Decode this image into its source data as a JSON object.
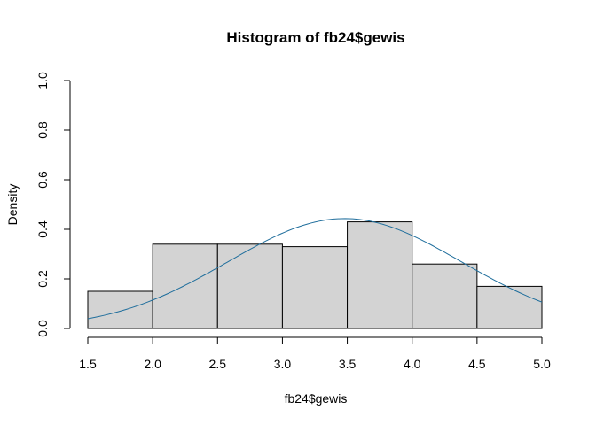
{
  "chart_data": {
    "type": "bar",
    "title": "Histogram of fb24$gewis",
    "xlabel": "fb24$gewis",
    "ylabel": "Density",
    "xlim": [
      1.5,
      5.0
    ],
    "ylim": [
      0,
      1.0
    ],
    "x_ticks": [
      "1.5",
      "2.0",
      "2.5",
      "3.0",
      "3.5",
      "4.0",
      "4.5",
      "5.0"
    ],
    "y_ticks": [
      "0.0",
      "0.2",
      "0.4",
      "0.6",
      "0.8",
      "1.0"
    ],
    "bins": [
      {
        "start": 1.5,
        "end": 2.0,
        "density": 0.15
      },
      {
        "start": 2.0,
        "end": 2.5,
        "density": 0.34
      },
      {
        "start": 2.5,
        "end": 3.0,
        "density": 0.34
      },
      {
        "start": 3.0,
        "end": 3.5,
        "density": 0.33
      },
      {
        "start": 3.5,
        "end": 4.0,
        "density": 0.43
      },
      {
        "start": 4.0,
        "end": 4.5,
        "density": 0.26
      },
      {
        "start": 4.5,
        "end": 5.0,
        "density": 0.17
      }
    ],
    "bar_color": "#d3d3d3",
    "bar_border": "#000000",
    "density_curve": {
      "type": "normal",
      "mean": 3.48,
      "sd": 0.9,
      "color": "#1f6e9c"
    },
    "grid": false,
    "legend": "none"
  }
}
